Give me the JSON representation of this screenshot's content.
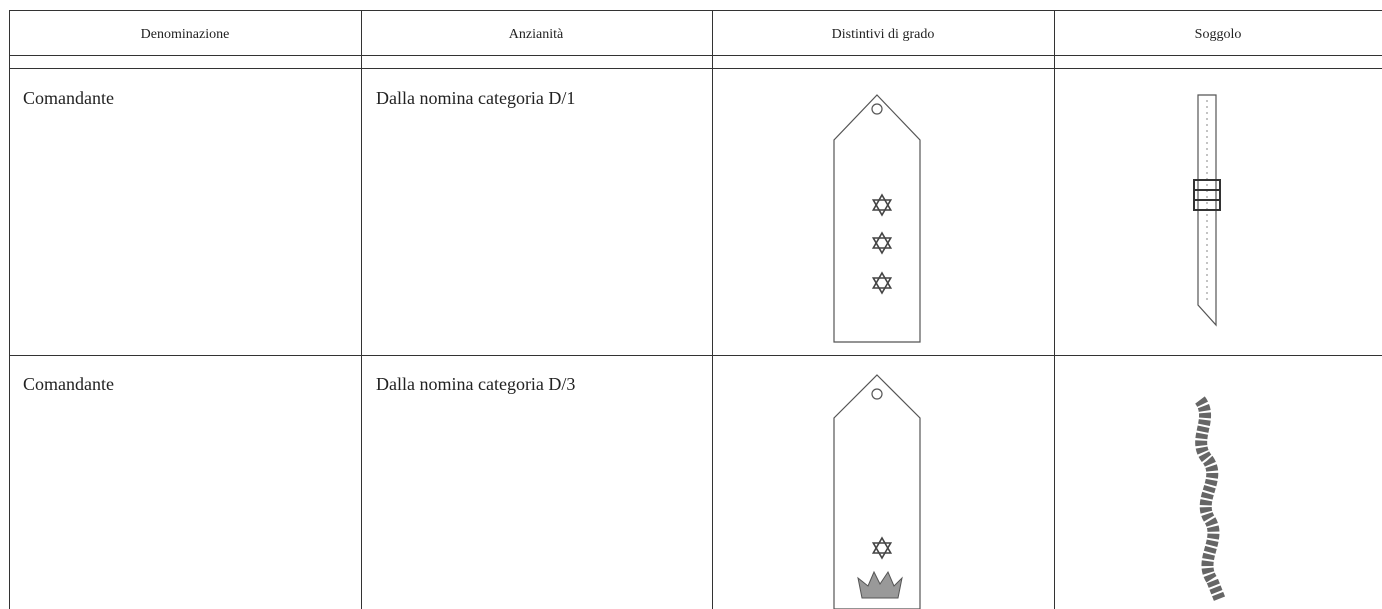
{
  "table": {
    "header": [
      "Denominazione",
      "Anzianità",
      "Distintivi di grado",
      "Soggolo"
    ],
    "rows": [
      [
        "Comandante",
        "Dalla nomina categoria D/1"
      ],
      [
        "Comandante",
        "Dalla nomina categoria D/3"
      ]
    ]
  }
}
